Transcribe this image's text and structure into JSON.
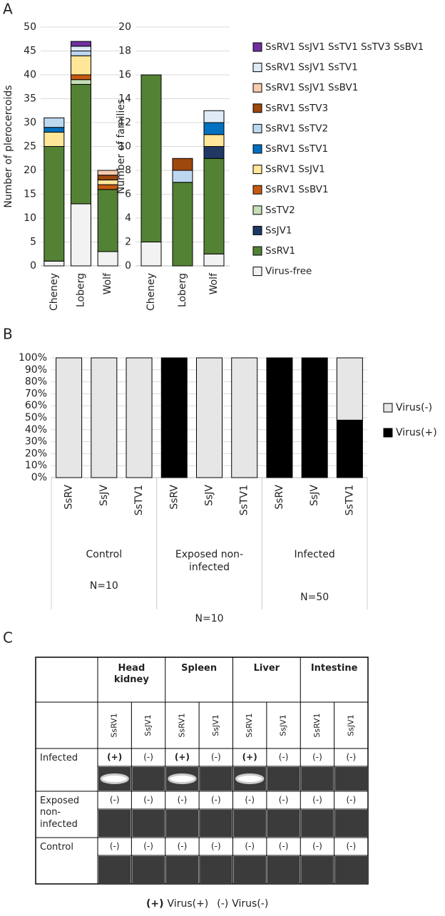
{
  "panel_labels": [
    "A",
    "B",
    "C"
  ],
  "chart_data": [
    {
      "type": "bar",
      "stacked": true,
      "y_label": "Number of plerocercoids",
      "categories": [
        "Cheney",
        "Loberg",
        "Wolf"
      ],
      "ylim": [
        0,
        50
      ],
      "yticks": [
        0,
        5,
        10,
        15,
        20,
        25,
        30,
        35,
        40,
        45,
        50
      ],
      "grid": true,
      "legend": "right",
      "series": [
        {
          "name": "Virus-free",
          "color": "#f2f2f2",
          "values": [
            1,
            13,
            3
          ]
        },
        {
          "name": "SsRV1",
          "color": "#548235",
          "values": [
            24,
            25,
            13
          ]
        },
        {
          "name": "SsJV1",
          "color": "#203864",
          "values": [
            0,
            0,
            0
          ]
        },
        {
          "name": "SsTV2",
          "color": "#c5e0b4",
          "values": [
            0,
            1,
            0
          ]
        },
        {
          "name": "SsRV1 SsBV1",
          "color": "#c55a11",
          "values": [
            0,
            1,
            1
          ]
        },
        {
          "name": "SsRV1 SsJV1",
          "color": "#ffe699",
          "values": [
            3,
            4,
            1
          ]
        },
        {
          "name": "SsRV1 SsTV1",
          "color": "#0070c0",
          "values": [
            1,
            0,
            0
          ]
        },
        {
          "name": "SsRV1 SsTV2",
          "color": "#bdd7ee",
          "values": [
            2,
            1,
            0
          ]
        },
        {
          "name": "SsRV1 SsTV3",
          "color": "#9e480e",
          "values": [
            0,
            0,
            1
          ]
        },
        {
          "name": "SsRV1 SsJV1 SsBV1",
          "color": "#f8cbad",
          "values": [
            0,
            0,
            1
          ]
        },
        {
          "name": "SsRV1 SsJV1 SsTV1",
          "color": "#deebf7",
          "values": [
            0,
            1,
            0
          ]
        },
        {
          "name": "SsRV1 SsJV1 SsTV1 SsTV3 SsBV1",
          "color": "#7030a0",
          "values": [
            0,
            1,
            0
          ]
        }
      ]
    },
    {
      "type": "bar",
      "stacked": true,
      "y_label": "Number of families",
      "categories": [
        "Cheney",
        "Loberg",
        "Wolf"
      ],
      "ylim": [
        0,
        20
      ],
      "yticks": [
        0,
        2,
        4,
        6,
        8,
        10,
        12,
        14,
        16,
        18,
        20
      ],
      "grid": true,
      "series": [
        {
          "values": [
            2,
            0,
            1
          ]
        },
        {
          "values": [
            14,
            7,
            8
          ]
        },
        {
          "values": [
            0,
            0,
            1
          ]
        },
        {
          "values": [
            0,
            0,
            0
          ]
        },
        {
          "values": [
            0,
            0,
            0
          ]
        },
        {
          "values": [
            0,
            0,
            1
          ]
        },
        {
          "values": [
            0,
            0,
            1
          ]
        },
        {
          "values": [
            0,
            1,
            0
          ]
        },
        {
          "values": [
            0,
            1,
            0
          ]
        },
        {
          "values": [
            0,
            0,
            0
          ]
        },
        {
          "values": [
            0,
            0,
            1
          ]
        },
        {
          "values": [
            0,
            0,
            0
          ]
        }
      ]
    },
    {
      "type": "bar",
      "stacked": true,
      "categories": [
        "SsRV",
        "SsJV",
        "SsTV1",
        "SsRV",
        "SsJV",
        "SsTV1",
        "SsRV",
        "SsJV",
        "SsTV1"
      ],
      "groups": [
        {
          "label": "Control",
          "n": "N=10"
        },
        {
          "label": "Exposed non-infected",
          "n": "N=10"
        },
        {
          "label": "Infected",
          "n": "N=50"
        }
      ],
      "ylim": [
        0,
        100
      ],
      "yticks": [
        {
          "value": 0,
          "label": "0%"
        },
        {
          "value": 10,
          "label": "10%"
        },
        {
          "value": 20,
          "label": "20%"
        },
        {
          "value": 30,
          "label": "30%"
        },
        {
          "value": 40,
          "label": "40%"
        },
        {
          "value": 50,
          "label": "50%"
        },
        {
          "value": 60,
          "label": "60%"
        },
        {
          "value": 70,
          "label": "70%"
        },
        {
          "value": 80,
          "label": "80%"
        },
        {
          "value": 90,
          "label": "90%"
        },
        {
          "value": 100,
          "label": "100%"
        }
      ],
      "grid": true,
      "legend": "right",
      "series": [
        {
          "name": "Virus(+)",
          "color": "#000000",
          "values": [
            0,
            0,
            0,
            100,
            0,
            0,
            100,
            100,
            48
          ]
        },
        {
          "name": "Virus(-)",
          "color": "#e7e6e6",
          "values": [
            100,
            100,
            100,
            0,
            100,
            100,
            0,
            0,
            52
          ]
        }
      ]
    }
  ],
  "table": {
    "columns": [
      {
        "tissue": "Head kidney",
        "markers": [
          "SsRV1",
          "SsJV1"
        ]
      },
      {
        "tissue": "Spleen",
        "markers": [
          "SsRV1",
          "SsJV1"
        ]
      },
      {
        "tissue": "Liver",
        "markers": [
          "SsRV1",
          "SsJV1"
        ]
      },
      {
        "tissue": "Intestine",
        "markers": [
          "SsRV1",
          "SsJV1"
        ]
      }
    ],
    "rows": [
      {
        "label": "Infected",
        "results": [
          "(+)",
          "(-)",
          "(+)",
          "(-)",
          "(+)",
          "(-)",
          "(-)",
          "(-)"
        ]
      },
      {
        "label": "Exposed non-infected",
        "results": [
          "(-)",
          "(-)",
          "(-)",
          "(-)",
          "(-)",
          "(-)",
          "(-)",
          "(-)"
        ]
      },
      {
        "label": "Control",
        "results": [
          "(-)",
          "(-)",
          "(-)",
          "(-)",
          "(-)",
          "(-)",
          "(-)",
          "(-)"
        ]
      }
    ],
    "footer": [
      {
        "symbol": "(+)",
        "meaning": "Virus(+)"
      },
      {
        "symbol": "(-)",
        "meaning": "Virus(-)"
      }
    ]
  }
}
